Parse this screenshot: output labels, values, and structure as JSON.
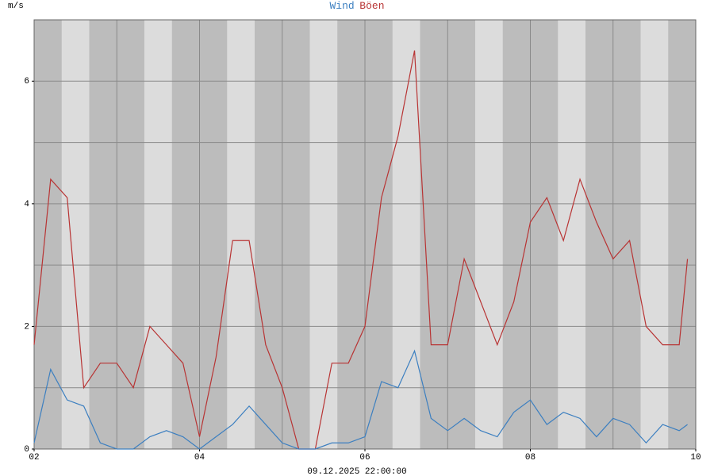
{
  "chart_data": {
    "type": "line",
    "ylabel": "m/s",
    "xlabel": "09.12.2025 22:00:00",
    "x": [
      2.0,
      2.2,
      2.4,
      2.6,
      2.8,
      3.0,
      3.2,
      3.4,
      3.6,
      3.8,
      4.0,
      4.2,
      4.4,
      4.6,
      4.8,
      5.0,
      5.2,
      5.4,
      5.6,
      5.8,
      6.0,
      6.2,
      6.4,
      6.6,
      6.8,
      7.0,
      7.2,
      7.4,
      7.6,
      7.8,
      8.0,
      8.2,
      8.4,
      8.6,
      8.8,
      9.0,
      9.2,
      9.4,
      9.6,
      9.8,
      9.9
    ],
    "series": [
      {
        "name": "Wind",
        "color": "#3c7fc0",
        "values": [
          0.1,
          1.3,
          0.8,
          0.7,
          0.1,
          0.0,
          0.0,
          0.2,
          0.3,
          0.2,
          0.0,
          0.2,
          0.4,
          0.7,
          0.4,
          0.1,
          0.0,
          0.0,
          0.1,
          0.1,
          0.2,
          1.1,
          1.0,
          1.6,
          0.5,
          0.3,
          0.5,
          0.3,
          0.2,
          0.6,
          0.8,
          0.4,
          0.6,
          0.5,
          0.2,
          0.5,
          0.4,
          0.1,
          0.4,
          0.3,
          0.4
        ]
      },
      {
        "name": "Böen",
        "color": "#b83434",
        "values": [
          1.7,
          4.4,
          4.1,
          1.0,
          1.4,
          1.4,
          1.0,
          2.0,
          1.7,
          1.4,
          0.2,
          1.5,
          3.4,
          3.4,
          1.7,
          1.0,
          0.0,
          0.0,
          1.4,
          1.4,
          2.0,
          4.1,
          5.1,
          6.5,
          1.7,
          1.7,
          3.1,
          2.4,
          1.7,
          2.4,
          3.7,
          4.1,
          3.4,
          4.4,
          3.7,
          3.1,
          3.4,
          2.0,
          1.7,
          1.7,
          3.1
        ]
      }
    ],
    "xlim": [
      2,
      10
    ],
    "xticks": [
      {
        "value": 2,
        "label": "02"
      },
      {
        "value": 4,
        "label": "04"
      },
      {
        "value": 6,
        "label": "06"
      },
      {
        "value": 8,
        "label": "08"
      },
      {
        "value": 10,
        "label": "10"
      }
    ],
    "xgrid": [
      2,
      3,
      4,
      5,
      6,
      7,
      8,
      9,
      10
    ],
    "ylim": [
      0,
      7
    ],
    "yticks": [
      0,
      2,
      4,
      6
    ],
    "ygrid": [
      0,
      1,
      2,
      3,
      4,
      5,
      6,
      7
    ],
    "grid": true
  }
}
